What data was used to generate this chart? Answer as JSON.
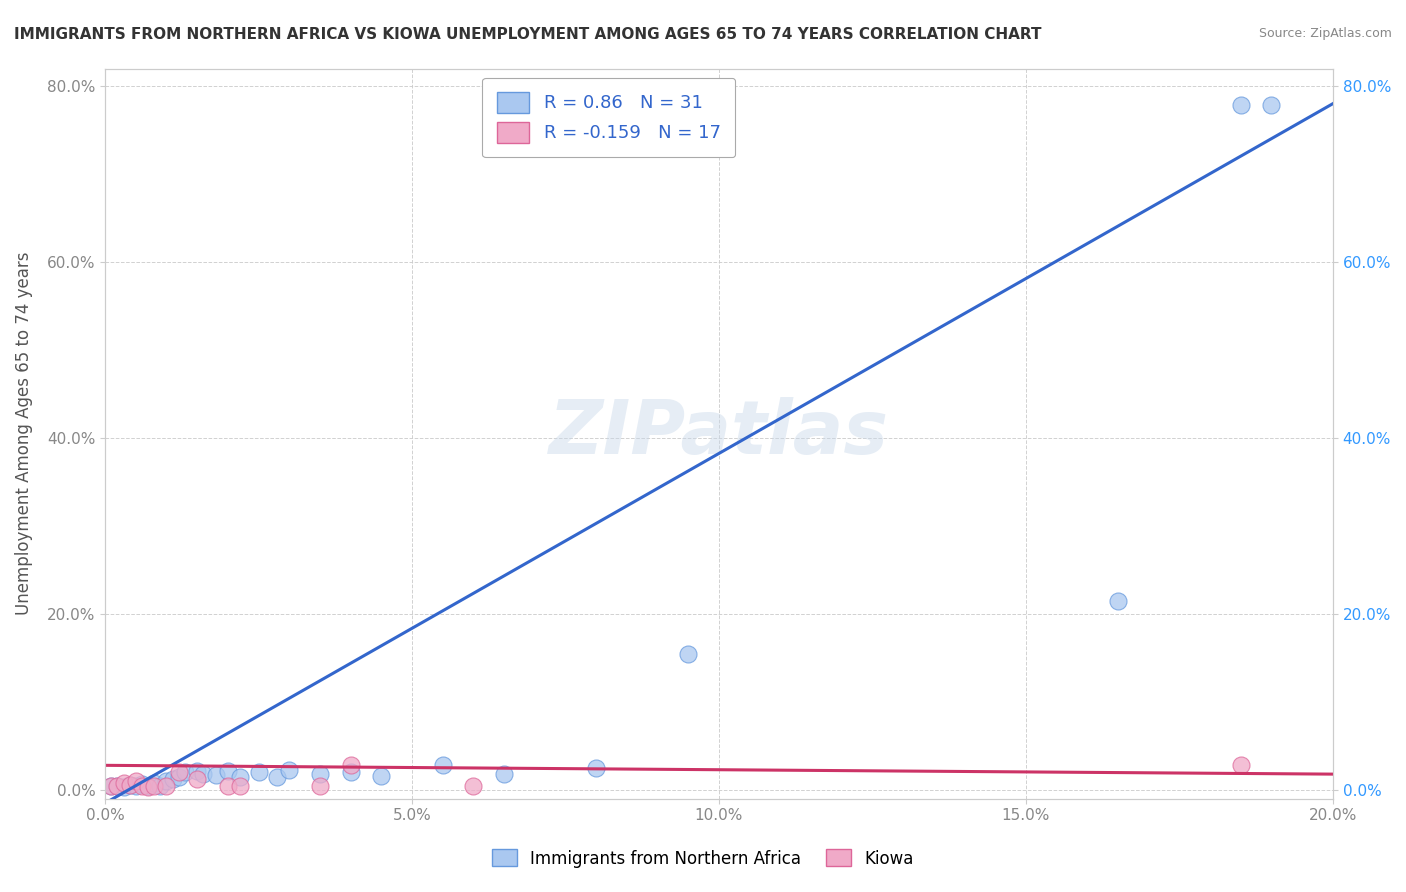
{
  "title": "IMMIGRANTS FROM NORTHERN AFRICA VS KIOWA UNEMPLOYMENT AMONG AGES 65 TO 74 YEARS CORRELATION CHART",
  "source": "Source: ZipAtlas.com",
  "ylabel": "Unemployment Among Ages 65 to 74 years",
  "watermark": "ZIPatlas",
  "xlim": [
    0.0,
    0.2
  ],
  "ylim": [
    -0.01,
    0.82
  ],
  "xtick_labels": [
    "0.0%",
    "5.0%",
    "10.0%",
    "15.0%",
    "20.0%"
  ],
  "xtick_vals": [
    0.0,
    0.05,
    0.1,
    0.15,
    0.2
  ],
  "ytick_labels": [
    "0.0%",
    "20.0%",
    "40.0%",
    "60.0%",
    "80.0%"
  ],
  "ytick_vals": [
    0.0,
    0.2,
    0.4,
    0.6,
    0.8
  ],
  "series1_label": "Immigrants from Northern Africa",
  "series1_R": 0.86,
  "series1_N": 31,
  "series1_color": "#aac8f0",
  "series1_edge_color": "#6699dd",
  "series1_line_color": "#3366cc",
  "series2_label": "Kiowa",
  "series2_R": -0.159,
  "series2_N": 17,
  "series2_color": "#f0aac8",
  "series2_edge_color": "#dd6699",
  "series2_line_color": "#cc3366",
  "legend_text_color": "#3366cc",
  "right_axis_color": "#3399ff",
  "blue_line_x0": 0.0,
  "blue_line_y0": -0.015,
  "blue_line_x1": 0.2,
  "blue_line_y1": 0.78,
  "pink_line_x0": 0.0,
  "pink_line_y0": 0.028,
  "pink_line_x1": 0.2,
  "pink_line_y1": 0.018,
  "blue_scatter_x": [
    0.001,
    0.002,
    0.003,
    0.004,
    0.005,
    0.006,
    0.007,
    0.008,
    0.009,
    0.01,
    0.011,
    0.012,
    0.013,
    0.015,
    0.016,
    0.018,
    0.02,
    0.022,
    0.025,
    0.028,
    0.03,
    0.035,
    0.04,
    0.045,
    0.055,
    0.065,
    0.08,
    0.095,
    0.165,
    0.185,
    0.19
  ],
  "blue_scatter_y": [
    0.005,
    0.005,
    0.003,
    0.006,
    0.004,
    0.007,
    0.005,
    0.008,
    0.004,
    0.01,
    0.012,
    0.015,
    0.02,
    0.022,
    0.018,
    0.017,
    0.022,
    0.015,
    0.02,
    0.015,
    0.023,
    0.018,
    0.02,
    0.016,
    0.028,
    0.018,
    0.025,
    0.155,
    0.215,
    0.778,
    0.778
  ],
  "pink_scatter_x": [
    0.001,
    0.002,
    0.003,
    0.004,
    0.005,
    0.006,
    0.007,
    0.008,
    0.01,
    0.012,
    0.015,
    0.02,
    0.022,
    0.035,
    0.04,
    0.06,
    0.185
  ],
  "pink_scatter_y": [
    0.005,
    0.005,
    0.008,
    0.006,
    0.01,
    0.005,
    0.003,
    0.005,
    0.005,
    0.02,
    0.013,
    0.005,
    0.005,
    0.005,
    0.028,
    0.005,
    0.028
  ]
}
